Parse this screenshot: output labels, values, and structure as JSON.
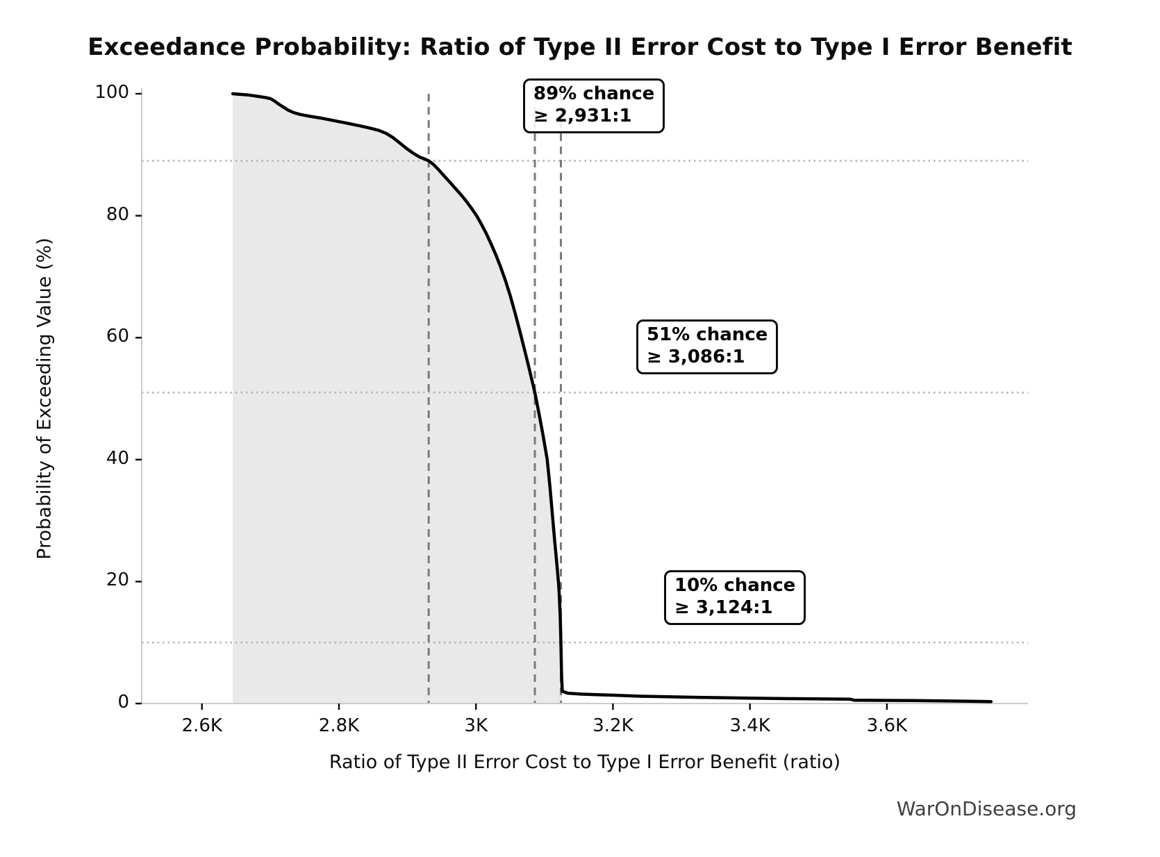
{
  "watermark": "WarOnDisease.org",
  "colors": {
    "curve": "#000000",
    "area_fill": "#e9e9e9",
    "dashed_reference": "#7a7a7a",
    "dotted_reference": "#b3b3b3",
    "axis_spine": "#cccccc",
    "tick_mark": "#111111",
    "text": "#0d0d0d",
    "watermark_text": "#3f3f3f"
  },
  "chart_data": {
    "type": "area",
    "title": "Exceedance Probability: Ratio of Type II Error Cost to Type I Error Benefit",
    "xlabel": "Ratio of Type II Error Cost to Type I Error Benefit (ratio)",
    "ylabel": "Probability of Exceeding Value (%)",
    "grid": "reference lines only (3 dashed vertical, 3 dotted horizontal)",
    "legend_position": "none",
    "x_axis": {
      "min": 2512,
      "max": 3806,
      "ticks": [
        {
          "value": 2600,
          "label": "2.6K"
        },
        {
          "value": 2800,
          "label": "2.8K"
        },
        {
          "value": 3000,
          "label": "3K"
        },
        {
          "value": 3200,
          "label": "3.2K"
        },
        {
          "value": 3400,
          "label": "3.4K"
        },
        {
          "value": 3600,
          "label": "3.6K"
        }
      ]
    },
    "y_axis": {
      "min": 0,
      "max": 100,
      "ticks": [
        {
          "value": 0,
          "label": "0"
        },
        {
          "value": 20,
          "label": "20"
        },
        {
          "value": 40,
          "label": "40"
        },
        {
          "value": 60,
          "label": "60"
        },
        {
          "value": 80,
          "label": "80"
        },
        {
          "value": 100,
          "label": "100"
        }
      ]
    },
    "series": [
      {
        "name": "exceedance_probability_curve",
        "fill_to_x": 3126,
        "points": [
          [
            2645,
            100
          ],
          [
            2656,
            99.9
          ],
          [
            2668,
            99.8
          ],
          [
            2680,
            99.6
          ],
          [
            2692,
            99.4
          ],
          [
            2700,
            99.2
          ],
          [
            2706,
            98.8
          ],
          [
            2712,
            98.3
          ],
          [
            2719,
            97.8
          ],
          [
            2726,
            97.3
          ],
          [
            2734,
            96.9
          ],
          [
            2744,
            96.6
          ],
          [
            2758,
            96.3
          ],
          [
            2774,
            96.0
          ],
          [
            2792,
            95.6
          ],
          [
            2810,
            95.2
          ],
          [
            2828,
            94.8
          ],
          [
            2844,
            94.4
          ],
          [
            2858,
            94.0
          ],
          [
            2869,
            93.5
          ],
          [
            2879,
            92.8
          ],
          [
            2889,
            91.9
          ],
          [
            2899,
            91.0
          ],
          [
            2909,
            90.2
          ],
          [
            2918,
            89.6
          ],
          [
            2925,
            89.3
          ],
          [
            2931,
            89.0
          ],
          [
            2938,
            88.4
          ],
          [
            2945,
            87.6
          ],
          [
            2953,
            86.6
          ],
          [
            2961,
            85.6
          ],
          [
            2969,
            84.6
          ],
          [
            2977,
            83.6
          ],
          [
            2985,
            82.5
          ],
          [
            2993,
            81.3
          ],
          [
            3001,
            80.0
          ],
          [
            3008,
            78.6
          ],
          [
            3015,
            77.1
          ],
          [
            3022,
            75.4
          ],
          [
            3029,
            73.6
          ],
          [
            3036,
            71.6
          ],
          [
            3043,
            69.4
          ],
          [
            3050,
            66.9
          ],
          [
            3057,
            64.1
          ],
          [
            3064,
            61.1
          ],
          [
            3071,
            58.0
          ],
          [
            3078,
            54.8
          ],
          [
            3086,
            51.0
          ],
          [
            3092,
            47.6
          ],
          [
            3098,
            44.0
          ],
          [
            3104,
            40.0
          ],
          [
            3108,
            35.6
          ],
          [
            3112,
            30.4
          ],
          [
            3115,
            26.6
          ],
          [
            3118,
            23.0
          ],
          [
            3121,
            19.2
          ],
          [
            3123,
            14.5
          ],
          [
            3124,
            10.0
          ],
          [
            3125,
            4.5
          ],
          [
            3126,
            2.0
          ],
          [
            3134,
            1.7
          ],
          [
            3152,
            1.55
          ],
          [
            3176,
            1.45
          ],
          [
            3204,
            1.35
          ],
          [
            3240,
            1.2
          ],
          [
            3280,
            1.1
          ],
          [
            3330,
            1.0
          ],
          [
            3390,
            0.9
          ],
          [
            3458,
            0.8
          ],
          [
            3546,
            0.72
          ],
          [
            3552,
            0.55
          ],
          [
            3640,
            0.48
          ],
          [
            3700,
            0.4
          ],
          [
            3752,
            0.32
          ]
        ]
      }
    ],
    "reference_lines": {
      "vertical_dashed_x": [
        2931,
        3086,
        3124
      ],
      "horizontal_dotted_y": [
        89,
        51,
        10
      ]
    },
    "annotations": [
      {
        "line1": "89% chance",
        "line2": "≥ 2,931:1",
        "chance_pct": 89,
        "ratio": 2931
      },
      {
        "line1": "51% chance",
        "line2": "≥ 3,086:1",
        "chance_pct": 51,
        "ratio": 3086
      },
      {
        "line1": "10% chance",
        "line2": "≥ 3,124:1",
        "chance_pct": 10,
        "ratio": 3124
      }
    ]
  }
}
